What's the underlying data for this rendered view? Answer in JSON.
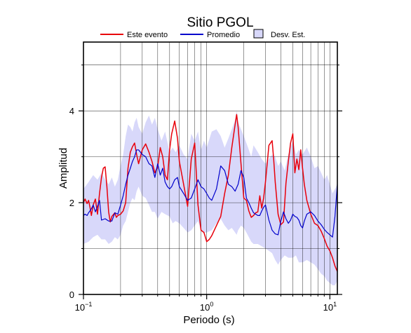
{
  "chart_data": {
    "type": "line",
    "title": "Sitio PGOL",
    "xlabel": "Periodo (s)",
    "ylabel": "Amplitud",
    "x_scale": "log",
    "xlim": [
      0.1,
      11.5
    ],
    "ylim": [
      0,
      5.5
    ],
    "x_ticks": [
      {
        "value": 0.1,
        "base": "10",
        "exp": "−1"
      },
      {
        "value": 1,
        "base": "10",
        "exp": "0"
      },
      {
        "value": 10,
        "base": "10",
        "exp": "1"
      }
    ],
    "y_ticks": [
      0,
      2,
      4
    ],
    "y_tick_labels": [
      "0",
      "2",
      "4"
    ],
    "grid": true,
    "legend_position": "top",
    "legend": [
      "Este evento",
      "Promedio",
      "Desv. Est."
    ],
    "colors": {
      "event": "#e8000b",
      "mean": "#0000cc",
      "band": "#d8d8fa",
      "band_border": "#000000"
    },
    "series": [
      {
        "name": "Este evento",
        "x": [
          0.1,
          0.103,
          0.107,
          0.11,
          0.113,
          0.116,
          0.12,
          0.125,
          0.13,
          0.135,
          0.14,
          0.145,
          0.15,
          0.155,
          0.16,
          0.165,
          0.17,
          0.18,
          0.185,
          0.19,
          0.2,
          0.21,
          0.22,
          0.23,
          0.24,
          0.25,
          0.26,
          0.27,
          0.28,
          0.3,
          0.32,
          0.34,
          0.36,
          0.38,
          0.4,
          0.42,
          0.44,
          0.46,
          0.48,
          0.5,
          0.52,
          0.55,
          0.58,
          0.6,
          0.65,
          0.7,
          0.75,
          0.8,
          0.85,
          0.9,
          0.95,
          1.0,
          1.05,
          1.1,
          1.2,
          1.3,
          1.4,
          1.5,
          1.6,
          1.7,
          1.75,
          1.8,
          1.9,
          2.0,
          2.1,
          2.2,
          2.3,
          2.4,
          2.5,
          2.6,
          2.7,
          2.8,
          2.9,
          3.0,
          3.2,
          3.4,
          3.5,
          3.6,
          3.8,
          4.0,
          4.2,
          4.4,
          4.6,
          4.8,
          5.0,
          5.2,
          5.4,
          5.6,
          5.8,
          6.0,
          6.2,
          6.5,
          7.0,
          7.5,
          8.0,
          8.5,
          9.0,
          9.5,
          10.0,
          10.5,
          11.0,
          11.5
        ],
        "y": [
          2.0,
          2.08,
          1.98,
          2.05,
          1.9,
          1.72,
          1.95,
          2.08,
          1.75,
          2.2,
          2.55,
          2.75,
          2.78,
          2.35,
          1.8,
          1.58,
          1.7,
          1.78,
          1.68,
          1.72,
          1.75,
          1.82,
          2.0,
          2.75,
          3.1,
          3.22,
          3.3,
          3.05,
          2.85,
          3.15,
          3.28,
          3.1,
          2.9,
          2.65,
          2.78,
          3.2,
          3.0,
          2.6,
          2.5,
          3.15,
          3.5,
          3.78,
          3.4,
          2.9,
          2.4,
          1.92,
          2.95,
          3.3,
          1.95,
          1.4,
          1.35,
          1.15,
          1.2,
          1.28,
          1.5,
          1.7,
          2.2,
          2.6,
          3.2,
          3.7,
          3.92,
          3.65,
          2.85,
          2.1,
          2.05,
          1.82,
          1.68,
          1.72,
          1.78,
          1.8,
          2.15,
          1.88,
          2.1,
          2.45,
          3.25,
          3.35,
          2.95,
          2.45,
          1.75,
          1.52,
          1.58,
          2.42,
          2.9,
          3.3,
          3.5,
          2.65,
          2.95,
          2.72,
          3.15,
          2.75,
          2.4,
          2.05,
          1.75,
          1.55,
          1.5,
          1.38,
          1.22,
          1.05,
          0.95,
          0.8,
          0.62,
          0.5
        ]
      },
      {
        "name": "Promedio",
        "x": [
          0.1,
          0.103,
          0.107,
          0.11,
          0.115,
          0.12,
          0.125,
          0.13,
          0.135,
          0.14,
          0.15,
          0.16,
          0.17,
          0.18,
          0.19,
          0.2,
          0.21,
          0.22,
          0.23,
          0.24,
          0.25,
          0.26,
          0.27,
          0.28,
          0.3,
          0.32,
          0.34,
          0.36,
          0.38,
          0.4,
          0.42,
          0.44,
          0.46,
          0.48,
          0.5,
          0.52,
          0.55,
          0.58,
          0.6,
          0.65,
          0.7,
          0.75,
          0.8,
          0.85,
          0.9,
          0.95,
          1.0,
          1.05,
          1.1,
          1.2,
          1.3,
          1.4,
          1.5,
          1.6,
          1.7,
          1.8,
          1.9,
          2.0,
          2.1,
          2.2,
          2.3,
          2.4,
          2.5,
          2.6,
          2.7,
          2.8,
          2.9,
          3.0,
          3.2,
          3.4,
          3.6,
          3.8,
          4.0,
          4.2,
          4.4,
          4.6,
          4.8,
          5.0,
          5.2,
          5.4,
          5.6,
          5.8,
          6.0,
          6.2,
          6.5,
          7.0,
          7.5,
          8.0,
          8.5,
          9.0,
          9.5,
          10.0,
          10.5,
          11.0,
          11.5
        ],
        "y": [
          1.72,
          1.75,
          1.72,
          1.78,
          1.85,
          1.95,
          1.8,
          1.92,
          2.05,
          1.62,
          1.65,
          1.6,
          1.6,
          1.78,
          1.75,
          1.95,
          2.15,
          2.4,
          2.6,
          2.75,
          2.9,
          3.0,
          3.15,
          3.15,
          3.05,
          3.0,
          2.85,
          2.8,
          2.55,
          2.85,
          2.6,
          2.75,
          2.45,
          2.35,
          2.3,
          2.35,
          2.5,
          2.55,
          2.35,
          2.2,
          2.05,
          2.1,
          2.3,
          2.5,
          2.35,
          2.3,
          2.2,
          2.1,
          2.05,
          2.3,
          2.8,
          2.7,
          2.4,
          2.35,
          2.25,
          2.4,
          2.7,
          2.55,
          2.1,
          2.0,
          1.88,
          1.78,
          1.75,
          1.72,
          1.72,
          1.82,
          1.9,
          1.95,
          1.62,
          1.4,
          1.32,
          1.3,
          1.6,
          1.8,
          1.65,
          1.55,
          1.62,
          1.75,
          1.7,
          1.68,
          1.62,
          1.5,
          1.45,
          1.6,
          1.75,
          1.8,
          1.72,
          1.6,
          1.52,
          1.42,
          1.35,
          1.3,
          1.25,
          1.7,
          2.4
        ]
      }
    ],
    "band": {
      "name": "Desv. Est.",
      "x": [
        0.1,
        0.11,
        0.12,
        0.13,
        0.14,
        0.15,
        0.16,
        0.17,
        0.18,
        0.19,
        0.2,
        0.21,
        0.22,
        0.23,
        0.24,
        0.25,
        0.26,
        0.27,
        0.28,
        0.3,
        0.32,
        0.34,
        0.36,
        0.38,
        0.4,
        0.43,
        0.46,
        0.5,
        0.53,
        0.56,
        0.6,
        0.65,
        0.7,
        0.75,
        0.8,
        0.85,
        0.9,
        0.95,
        1.0,
        1.1,
        1.2,
        1.3,
        1.4,
        1.5,
        1.6,
        1.7,
        1.75,
        1.8,
        1.9,
        2.0,
        2.1,
        2.2,
        2.3,
        2.4,
        2.6,
        2.8,
        3.0,
        3.2,
        3.4,
        3.6,
        3.8,
        4.0,
        4.3,
        4.6,
        5.0,
        5.3,
        5.6,
        6.0,
        6.5,
        7.0,
        7.5,
        8.0,
        8.5,
        9.0,
        9.5,
        10.0,
        10.5,
        11.0,
        11.5
      ],
      "upper": [
        2.3,
        2.45,
        2.6,
        2.5,
        2.65,
        2.5,
        2.4,
        2.55,
        2.35,
        2.5,
        2.8,
        3.05,
        3.45,
        3.7,
        3.65,
        3.55,
        3.75,
        3.85,
        3.65,
        3.5,
        3.75,
        3.9,
        3.7,
        3.85,
        3.6,
        3.35,
        3.55,
        3.1,
        3.2,
        3.1,
        3.25,
        3.05,
        2.95,
        3.5,
        3.35,
        3.55,
        3.15,
        3.35,
        3.2,
        3.55,
        3.6,
        3.45,
        3.2,
        3.4,
        3.6,
        3.8,
        4.0,
        3.75,
        3.6,
        3.45,
        3.3,
        3.15,
        3.0,
        3.25,
        3.1,
        2.95,
        2.85,
        2.95,
        3.05,
        3.0,
        2.8,
        2.9,
        2.7,
        3.05,
        3.35,
        3.05,
        3.15,
        3.05,
        3.2,
        3.0,
        2.75,
        2.8,
        2.65,
        2.5,
        2.6,
        2.4,
        2.2,
        2.3,
        2.4
      ],
      "lower": [
        1.1,
        1.15,
        1.25,
        1.3,
        1.2,
        1.2,
        1.1,
        1.15,
        1.25,
        1.2,
        1.3,
        1.5,
        1.6,
        1.8,
        2.0,
        2.1,
        2.05,
        2.25,
        2.35,
        2.15,
        2.1,
        1.95,
        1.8,
        1.8,
        1.65,
        1.8,
        1.75,
        1.7,
        1.55,
        1.6,
        1.55,
        1.45,
        1.35,
        1.4,
        1.5,
        1.6,
        1.4,
        1.35,
        1.35,
        1.4,
        1.55,
        1.65,
        1.5,
        1.4,
        1.45,
        1.35,
        1.3,
        1.4,
        1.5,
        1.45,
        1.35,
        1.25,
        1.15,
        1.1,
        1.1,
        1.05,
        1.0,
        0.95,
        0.9,
        0.75,
        0.65,
        0.75,
        0.85,
        0.8,
        0.8,
        0.85,
        0.7,
        0.7,
        0.75,
        0.7,
        0.65,
        0.55,
        0.45,
        0.4,
        0.3,
        0.25,
        0.2,
        0.2,
        0.3
      ]
    }
  }
}
